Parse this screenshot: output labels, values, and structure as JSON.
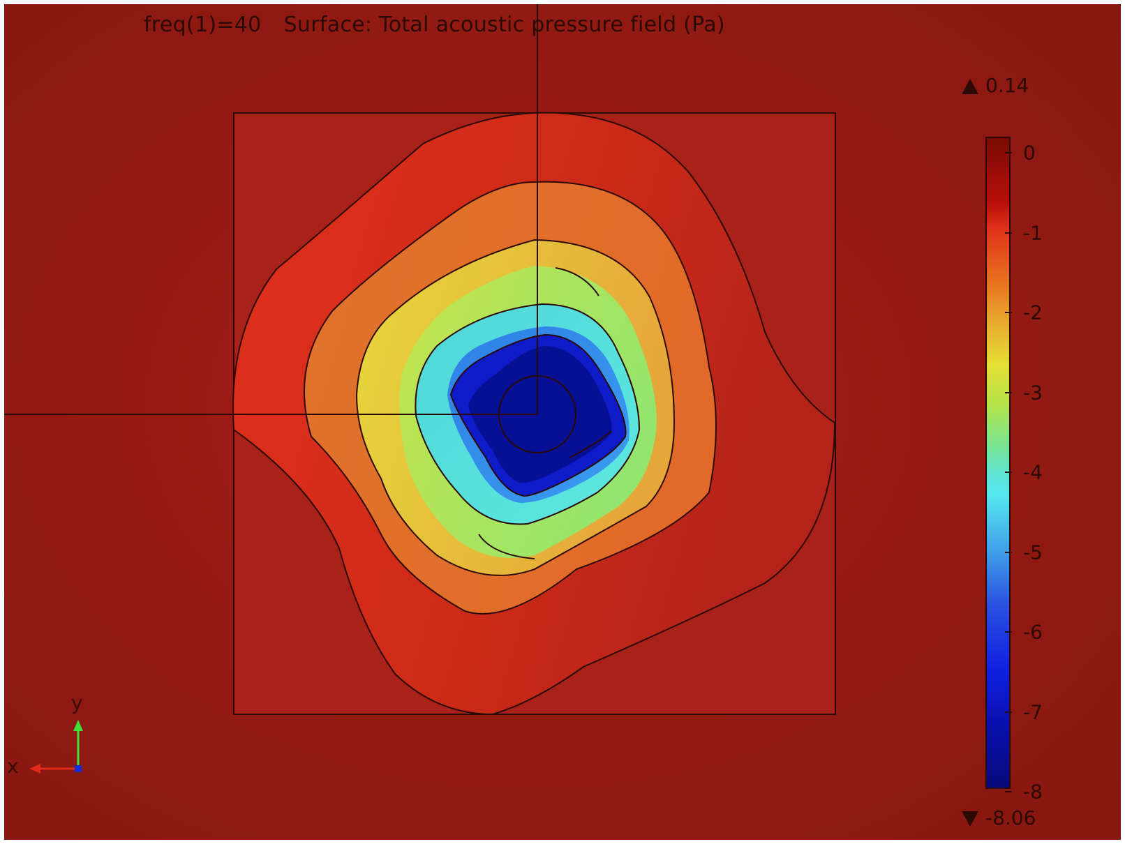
{
  "title": {
    "frequency": "freq(1)=40",
    "description": "Surface: Total acoustic pressure field (Pa)"
  },
  "colorbar": {
    "max_label": "0.14",
    "min_label": "-8.06",
    "ticks": [
      "0",
      "-1",
      "-2",
      "-3",
      "-4",
      "-5",
      "-6",
      "-7",
      "-8"
    ],
    "colormap": "rainbow"
  },
  "axes_triad": {
    "x_label": "x",
    "y_label": "y",
    "x_color": "#e02a1a",
    "y_color": "#3ee03a"
  },
  "colors": {
    "background": "#8b1a12",
    "outline": "#2b0a06"
  }
}
